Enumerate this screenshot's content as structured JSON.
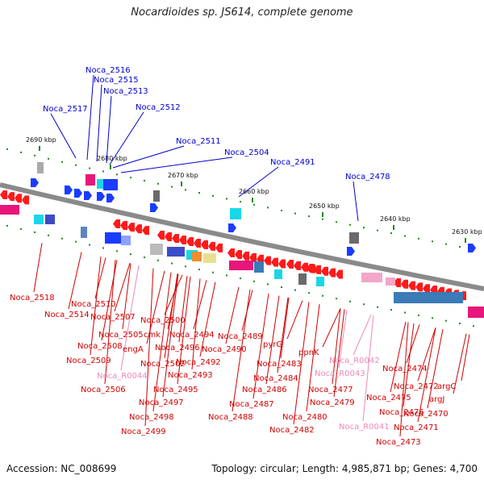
{
  "title": "Nocardioides sp. JS614, complete genome",
  "accession": "Accession: NC_008699",
  "topology": "Topology: circular; Length: 4,985,871 bp; Genes: 4,700",
  "colors": {
    "blue_label": "#0000cc",
    "red_label": "#d00000",
    "pink_label": "#ee88bb",
    "gene_red": "#ff1a1a",
    "gene_blue": "#1a3cff",
    "track": "#888888"
  },
  "kbp_ticks": [
    "2690 kbp",
    "2680 kbp",
    "2670 kbp",
    "2660 kbp",
    "2650 kbp",
    "2640 kbp",
    "2630 kbp"
  ],
  "top_labels": [
    "Noca_2516",
    "Noca_2515",
    "Noca_2513",
    "Noca_2517",
    "Noca_2512",
    "Noca_2511",
    "Noca_2504",
    "Noca_2491",
    "Noca_2478"
  ],
  "bottom_labels": [
    {
      "t": "Noca_2518",
      "c": "red"
    },
    {
      "t": "Noca_2510",
      "c": "red"
    },
    {
      "t": "Noca_2514",
      "c": "red"
    },
    {
      "t": "Noca_2507",
      "c": "red"
    },
    {
      "t": "Noca_2500",
      "c": "red"
    },
    {
      "t": "Noca_2505",
      "c": "red"
    },
    {
      "t": "cmk",
      "c": "red"
    },
    {
      "t": "Noca_2494",
      "c": "red"
    },
    {
      "t": "Noca_2508",
      "c": "red"
    },
    {
      "t": "engA",
      "c": "red"
    },
    {
      "t": "Noca_2496",
      "c": "red"
    },
    {
      "t": "Noca_2509",
      "c": "red"
    },
    {
      "t": "Noca_2502",
      "c": "red"
    },
    {
      "t": "Noca_2492",
      "c": "red"
    },
    {
      "t": "Noca_R0044",
      "c": "pink"
    },
    {
      "t": "Noca_2493",
      "c": "red"
    },
    {
      "t": "Noca_2506",
      "c": "red"
    },
    {
      "t": "Noca_2495",
      "c": "red"
    },
    {
      "t": "Noca_2497",
      "c": "red"
    },
    {
      "t": "Noca_2498",
      "c": "red"
    },
    {
      "t": "Noca_2499",
      "c": "red"
    },
    {
      "t": "Noca_2489",
      "c": "red"
    },
    {
      "t": "Noca_2490",
      "c": "red"
    },
    {
      "t": "pyrG",
      "c": "red"
    },
    {
      "t": "ppnK",
      "c": "red"
    },
    {
      "t": "Noca_2483",
      "c": "red"
    },
    {
      "t": "Noca_2484",
      "c": "red"
    },
    {
      "t": "Noca_2486",
      "c": "red"
    },
    {
      "t": "Noca_2487",
      "c": "red"
    },
    {
      "t": "Noca_2488",
      "c": "red"
    },
    {
      "t": "Noca_2477",
      "c": "red"
    },
    {
      "t": "Noca_2479",
      "c": "red"
    },
    {
      "t": "Noca_2480",
      "c": "red"
    },
    {
      "t": "Noca_2482",
      "c": "red"
    },
    {
      "t": "Noca_R0042",
      "c": "pink"
    },
    {
      "t": "Noca_R0043",
      "c": "pink"
    },
    {
      "t": "Noca_R0041",
      "c": "pink"
    },
    {
      "t": "Noca_2474",
      "c": "red"
    },
    {
      "t": "Noca_2475",
      "c": "red"
    },
    {
      "t": "Noca_2472",
      "c": "red"
    },
    {
      "t": "argC",
      "c": "red"
    },
    {
      "t": "Noca_2476",
      "c": "red"
    },
    {
      "t": "argJ",
      "c": "red"
    },
    {
      "t": "Noca_2470",
      "c": "red"
    },
    {
      "t": "Noca_2471",
      "c": "red"
    },
    {
      "t": "Noca_2473",
      "c": "red"
    }
  ]
}
